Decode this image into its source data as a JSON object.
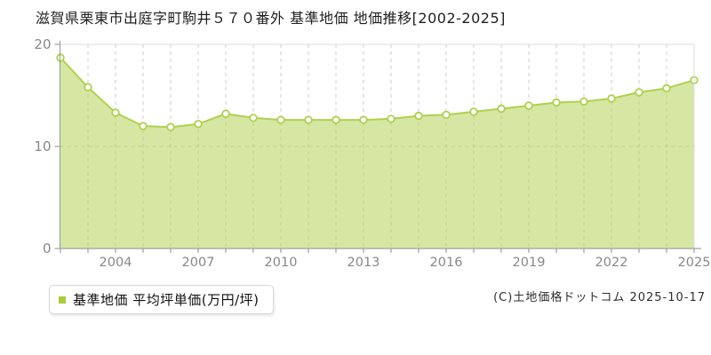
{
  "title": "滋賀県栗東市出庭字町駒井５７０番外 基準地価 地価推移[2002-2025]",
  "legend": {
    "label": "基準地価 平均坪単価(万円/坪)",
    "swatch_color": "#a9cc3a"
  },
  "footer": {
    "copyright": "(C)土地価格ドットコム 2025-10-17"
  },
  "chart_data": {
    "type": "area",
    "title": "滋賀県栗東市出庭字町駒井５７０番外 基準地価 地価推移[2002-2025]",
    "xlabel": "",
    "ylabel": "平均坪単価(万円/坪)",
    "x": [
      2002,
      2003,
      2004,
      2005,
      2006,
      2007,
      2008,
      2009,
      2010,
      2011,
      2012,
      2013,
      2014,
      2015,
      2016,
      2017,
      2018,
      2019,
      2020,
      2021,
      2022,
      2023,
      2024,
      2025
    ],
    "series": [
      {
        "name": "基準地価 平均坪単価(万円/坪)",
        "values": [
          18.7,
          15.8,
          13.3,
          12.0,
          11.9,
          12.2,
          13.2,
          12.8,
          12.6,
          12.6,
          12.6,
          12.6,
          12.7,
          13.0,
          13.1,
          13.4,
          13.7,
          14.0,
          14.3,
          14.4,
          14.7,
          15.3,
          15.7,
          16.5
        ]
      }
    ],
    "ylim": [
      0,
      20
    ],
    "yticks": [
      0,
      10,
      20
    ],
    "xticks": [
      2004,
      2007,
      2010,
      2013,
      2016,
      2019,
      2022,
      2025
    ],
    "grid": true,
    "legend_position": "bottom-left",
    "colors": {
      "line": "#afd14f",
      "fill": "#b5d357",
      "fill_opacity": 0.55,
      "marker_fill": "#ffffff",
      "marker_stroke": "#afd14f",
      "grid": "#cccccc",
      "frame": "#dddddd",
      "axis": "#a0a0a0",
      "tick_label": "#888888"
    }
  }
}
